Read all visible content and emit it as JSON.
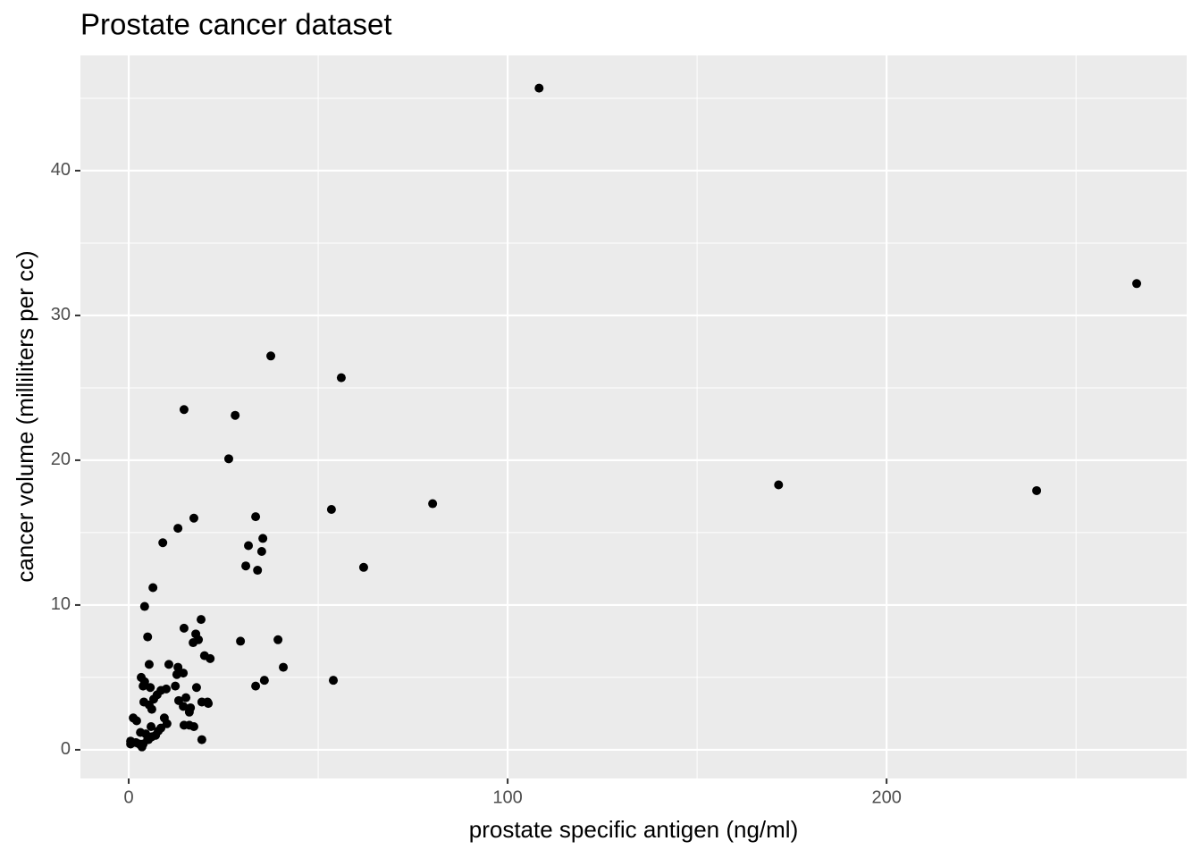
{
  "chart_data": {
    "type": "scatter",
    "title": "Prostate cancer dataset",
    "x_label": "prostate specific antigen (ng/ml)",
    "y_label": "cancer volume (milliliters per cc)",
    "color": "#000000",
    "grid": true,
    "xlim": [
      -12.74,
      279.2
    ],
    "ylim": [
      -1.98,
      47.96
    ],
    "xticks": [
      0,
      100,
      200
    ],
    "yticks": [
      0,
      10,
      20,
      30,
      40
    ],
    "xminor": [
      50,
      150,
      250
    ],
    "yminor": [
      5,
      15,
      25,
      35,
      45
    ],
    "x": [
      108.3,
      266.0,
      37.5,
      56.1,
      14.6,
      28.1,
      26.4,
      171.5,
      239.6,
      80.2,
      53.5,
      33.5,
      17.2,
      13.0,
      9.0,
      35.4,
      31.6,
      35.1,
      30.9,
      34.0,
      62.0,
      6.4,
      4.2,
      19.1,
      14.6,
      5.0,
      17.7,
      18.4,
      17.0,
      29.5,
      39.4,
      20.0,
      21.5,
      5.4,
      10.6,
      13.0,
      40.8,
      14.4,
      12.7,
      3.3,
      35.8,
      54.0,
      4.2,
      3.8,
      33.5,
      5.7,
      12.3,
      17.9,
      8.5,
      9.9,
      7.5,
      6.6,
      15.1,
      13.2,
      19.3,
      20.8,
      4.0,
      21.0,
      5.4,
      14.4,
      6.1,
      16.3,
      16.0,
      9.4,
      1.2,
      2.1,
      14.6,
      16.0,
      17.2,
      10.1,
      8.5,
      5.9,
      3.1,
      4.5,
      7.1,
      7.8,
      6.1,
      5.2,
      19.3,
      0.5,
      0.5,
      1.9,
      2.8,
      3.8,
      3.5,
      5.0
    ],
    "y": [
      45.7,
      32.2,
      27.2,
      25.7,
      23.5,
      23.1,
      20.1,
      18.3,
      17.9,
      17.0,
      16.6,
      16.1,
      16.0,
      15.3,
      14.3,
      14.6,
      14.1,
      13.7,
      12.7,
      12.4,
      12.6,
      11.2,
      9.9,
      9.0,
      8.4,
      7.8,
      8.0,
      7.6,
      7.4,
      7.5,
      7.6,
      6.5,
      6.3,
      5.9,
      5.9,
      5.7,
      5.7,
      5.3,
      5.2,
      5.0,
      4.8,
      4.8,
      4.7,
      4.4,
      4.4,
      4.3,
      4.4,
      4.3,
      4.1,
      4.2,
      3.8,
      3.5,
      3.6,
      3.4,
      3.3,
      3.3,
      3.3,
      3.2,
      3.1,
      3.0,
      2.8,
      2.9,
      2.6,
      2.2,
      2.2,
      2.0,
      1.7,
      1.7,
      1.6,
      1.8,
      1.5,
      1.6,
      1.2,
      1.1,
      1.0,
      1.3,
      0.9,
      0.7,
      0.7,
      0.6,
      0.4,
      0.5,
      0.4,
      0.4,
      0.2,
      0.7
    ]
  }
}
